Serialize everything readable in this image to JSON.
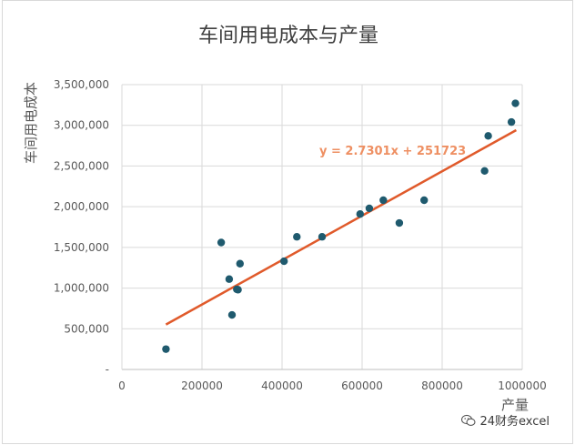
{
  "chart_data": {
    "type": "scatter",
    "title": "车间用电成本与产量",
    "xlabel": "产量",
    "ylabel": "车间用电成本",
    "xlim": [
      0,
      1000000
    ],
    "ylim": [
      0,
      3500000
    ],
    "x_ticks": [
      0,
      200000,
      400000,
      600000,
      800000,
      1000000
    ],
    "x_tick_labels": [
      "0",
      "200000",
      "400000",
      "600000",
      "800000",
      "1000000"
    ],
    "y_ticks": [
      0,
      500000,
      1000000,
      1500000,
      2000000,
      2500000,
      3000000,
      3500000
    ],
    "y_tick_labels": [
      "-",
      "500,000",
      "1,000,000",
      "1,500,000",
      "2,000,000",
      "2,500,000",
      "3,000,000",
      "3,500,000"
    ],
    "grid": true,
    "marker_color": "#1f5a6e",
    "trendline_color": "#e05a2b",
    "trendline": {
      "slope": 2.7301,
      "intercept": 251723,
      "x_range": [
        110000,
        985000
      ],
      "label": "y = 2.7301x + 251723"
    },
    "points": [
      {
        "x": 110000,
        "y": 250000
      },
      {
        "x": 248000,
        "y": 1560000
      },
      {
        "x": 268000,
        "y": 1110000
      },
      {
        "x": 275000,
        "y": 670000
      },
      {
        "x": 287000,
        "y": 985000
      },
      {
        "x": 290000,
        "y": 980000
      },
      {
        "x": 295000,
        "y": 1300000
      },
      {
        "x": 405000,
        "y": 1330000
      },
      {
        "x": 437000,
        "y": 1630000
      },
      {
        "x": 500000,
        "y": 1630000
      },
      {
        "x": 595000,
        "y": 1910000
      },
      {
        "x": 618000,
        "y": 1980000
      },
      {
        "x": 653000,
        "y": 2080000
      },
      {
        "x": 693000,
        "y": 1800000
      },
      {
        "x": 755000,
        "y": 2080000
      },
      {
        "x": 906000,
        "y": 2440000
      },
      {
        "x": 915000,
        "y": 2870000
      },
      {
        "x": 973000,
        "y": 3040000
      },
      {
        "x": 983000,
        "y": 3270000
      }
    ]
  },
  "watermark": {
    "icon": "wechat-icon",
    "text": "24财务excel"
  }
}
